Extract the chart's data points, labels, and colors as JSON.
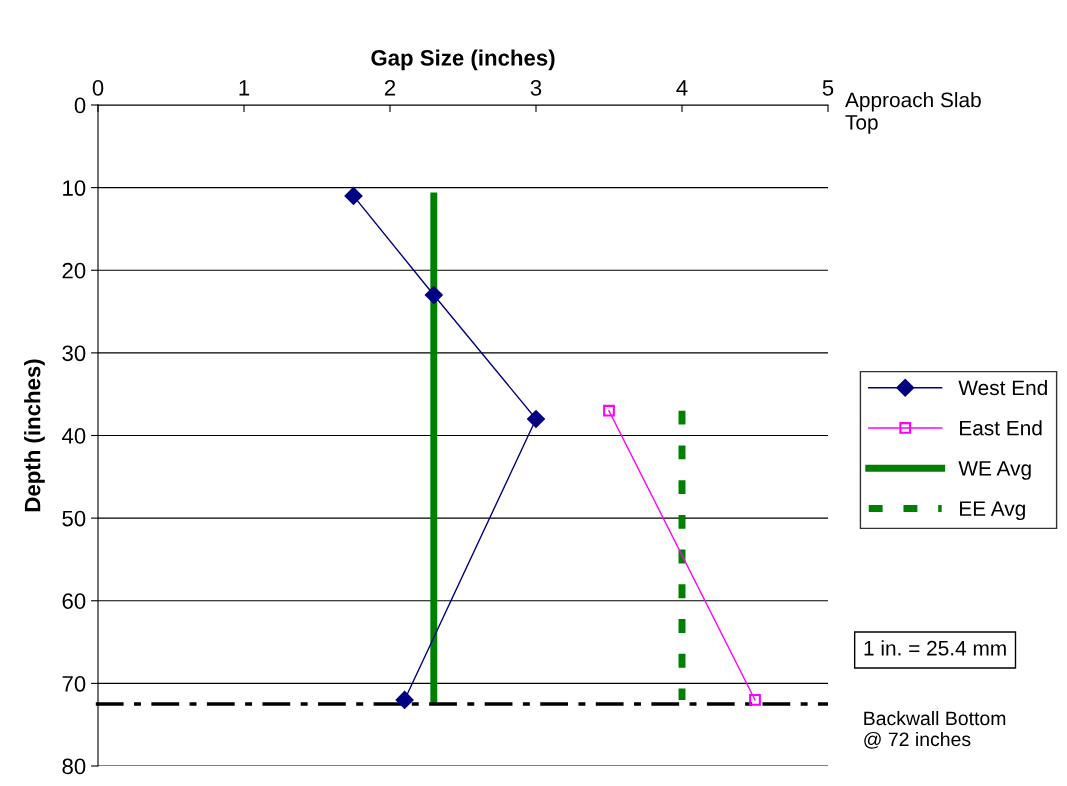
{
  "chart_data": {
    "type": "line",
    "xlabel": "Gap Size (inches)",
    "ylabel": "Depth (inches)",
    "xlim": [
      0,
      5
    ],
    "xticks": [
      0,
      1,
      2,
      3,
      4,
      5
    ],
    "ylim": [
      80,
      0
    ],
    "yticks": [
      0,
      10,
      20,
      30,
      40,
      50,
      60,
      70,
      80
    ],
    "grid": "y",
    "legend": "right",
    "series": [
      {
        "name": "West End",
        "color": "#000080",
        "marker": "diamond",
        "line_style": "solid",
        "x": [
          1.75,
          2.3,
          3.0,
          2.1
        ],
        "values": [
          11,
          23,
          38,
          72
        ]
      },
      {
        "name": "East End",
        "color": "#ff00ff",
        "marker": "square",
        "line_style": "solid",
        "x": [
          3.5,
          4.5
        ],
        "values": [
          37,
          72
        ]
      },
      {
        "name": "WE Avg",
        "color": "#008000",
        "marker": "none",
        "line_style": "solid",
        "x": [
          2.3,
          2.3
        ],
        "values": [
          11,
          72
        ]
      },
      {
        "name": "EE Avg",
        "color": "#008000",
        "marker": "none",
        "line_style": "dashed",
        "x": [
          4.0,
          4.0
        ],
        "values": [
          37,
          72
        ]
      }
    ],
    "ref_lines": [
      {
        "axis": "y",
        "value": 72.5,
        "label": "Backwall Bottom\n@ 72 inches",
        "color": "#000000",
        "line_style": "dashdot"
      }
    ],
    "annotations": [
      "Approach Slab\nTop",
      "1 in. = 25.4 mm"
    ]
  }
}
